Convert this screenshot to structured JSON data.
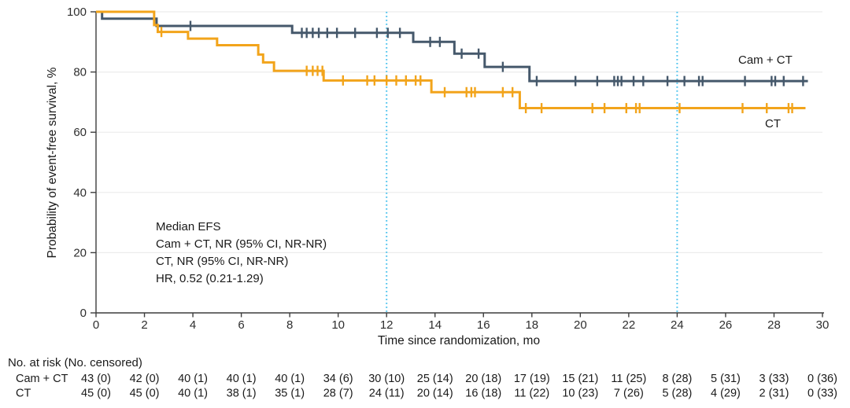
{
  "chart_data": {
    "type": "line",
    "subtype": "kaplan_meier_step_curve",
    "title": "",
    "xlabel": "Time since randomization, mo",
    "ylabel": "Probability of event-free survival, %",
    "xlim": [
      0,
      30
    ],
    "ylim": [
      0,
      100
    ],
    "xticks": [
      0,
      2,
      4,
      6,
      8,
      10,
      12,
      14,
      16,
      18,
      20,
      22,
      24,
      26,
      28,
      30
    ],
    "yticks": [
      0,
      20,
      40,
      60,
      80,
      100
    ],
    "grid": "horizontal-light",
    "legend_position": "labels-at-curve-end",
    "reference_lines_x": [
      12,
      24
    ],
    "colors": {
      "grid": "#ECECEC",
      "axis": "#3D3D3D",
      "reference": "#4EC3EE",
      "cam_ct": "#45586B",
      "ct": "#F2A41B"
    },
    "annotation": [
      "Median EFS",
      "Cam + CT, NR (95% CI, NR-NR)",
      "CT, NR (95% CI, NR-NR)",
      "HR, 0.52 (0.21-1.29)"
    ],
    "series": [
      {
        "id": "cam-ct",
        "name": "Cam + CT",
        "color": "#45586B",
        "steps": [
          [
            0,
            100
          ],
          [
            0.25,
            97.7
          ],
          [
            2.5,
            95.3
          ],
          [
            8.1,
            93.0
          ],
          [
            13.1,
            90.0
          ],
          [
            14.8,
            86.1
          ],
          [
            16.05,
            81.7
          ],
          [
            17.9,
            77.0
          ]
        ],
        "end_time": 29.4,
        "censor_marks": [
          [
            3.9,
            95.3
          ],
          [
            8.5,
            93.0
          ],
          [
            8.7,
            93.0
          ],
          [
            8.95,
            93.0
          ],
          [
            9.2,
            93.0
          ],
          [
            9.55,
            93.0
          ],
          [
            9.95,
            93.0
          ],
          [
            10.7,
            93.0
          ],
          [
            11.6,
            93.0
          ],
          [
            12.05,
            93.0
          ],
          [
            12.55,
            93.0
          ],
          [
            13.8,
            90.0
          ],
          [
            14.2,
            90.0
          ],
          [
            15.1,
            86.1
          ],
          [
            15.8,
            86.1
          ],
          [
            16.8,
            81.7
          ],
          [
            18.2,
            77.0
          ],
          [
            19.8,
            77.0
          ],
          [
            20.7,
            77.0
          ],
          [
            21.4,
            77.0
          ],
          [
            21.55,
            77.0
          ],
          [
            21.7,
            77.0
          ],
          [
            22.2,
            77.0
          ],
          [
            22.6,
            77.0
          ],
          [
            23.6,
            77.0
          ],
          [
            24.3,
            77.0
          ],
          [
            24.9,
            77.0
          ],
          [
            25.05,
            77.0
          ],
          [
            26.8,
            77.0
          ],
          [
            27.9,
            77.0
          ],
          [
            28.05,
            77.0
          ],
          [
            28.4,
            77.0
          ],
          [
            29.2,
            77.0
          ]
        ],
        "label_anchor": {
          "t": 26.55,
          "pct": 82.8
        }
      },
      {
        "id": "ct",
        "name": "CT",
        "color": "#F2A41B",
        "steps": [
          [
            0,
            100
          ],
          [
            2.4,
            95.6
          ],
          [
            2.55,
            93.3
          ],
          [
            3.8,
            91.1
          ],
          [
            5.0,
            88.9
          ],
          [
            6.7,
            85.8
          ],
          [
            6.9,
            83.2
          ],
          [
            7.35,
            80.4
          ],
          [
            9.4,
            77.2
          ],
          [
            13.85,
            73.3
          ],
          [
            17.5,
            68.0
          ]
        ],
        "end_time": 29.3,
        "censor_marks": [
          [
            2.7,
            93.3
          ],
          [
            8.7,
            80.4
          ],
          [
            8.95,
            80.4
          ],
          [
            9.15,
            80.4
          ],
          [
            9.35,
            80.4
          ],
          [
            10.2,
            77.2
          ],
          [
            11.2,
            77.2
          ],
          [
            11.5,
            77.2
          ],
          [
            12.0,
            77.2
          ],
          [
            12.4,
            77.2
          ],
          [
            12.8,
            77.2
          ],
          [
            13.2,
            77.2
          ],
          [
            13.4,
            77.2
          ],
          [
            14.4,
            73.3
          ],
          [
            15.3,
            73.3
          ],
          [
            15.5,
            73.3
          ],
          [
            15.65,
            73.3
          ],
          [
            16.8,
            73.3
          ],
          [
            17.2,
            73.3
          ],
          [
            17.75,
            68.0
          ],
          [
            18.4,
            68.0
          ],
          [
            20.5,
            68.0
          ],
          [
            21.0,
            68.0
          ],
          [
            21.9,
            68.0
          ],
          [
            22.3,
            68.0
          ],
          [
            22.45,
            68.0
          ],
          [
            24.1,
            68.0
          ],
          [
            26.7,
            68.0
          ],
          [
            27.7,
            68.0
          ],
          [
            28.6,
            68.0
          ],
          [
            28.75,
            68.0
          ]
        ],
        "label_anchor": {
          "t": 27.65,
          "pct": 61.6
        }
      }
    ]
  },
  "risk_table": {
    "title": "No. at risk (No. censored)",
    "times": [
      0,
      2,
      4,
      6,
      8,
      10,
      12,
      14,
      16,
      18,
      20,
      22,
      24,
      26,
      28,
      30
    ],
    "rows": [
      {
        "label": "Cam + CT",
        "values": [
          "43 (0)",
          "42 (0)",
          "40 (1)",
          "40 (1)",
          "40 (1)",
          "34 (6)",
          "30 (10)",
          "25 (14)",
          "20 (18)",
          "17 (19)",
          "15 (21)",
          "11 (25)",
          "8 (28)",
          "5 (31)",
          "3 (33)",
          "0 (36)"
        ]
      },
      {
        "label": "CT",
        "values": [
          "45 (0)",
          "45 (0)",
          "40 (1)",
          "38 (1)",
          "35 (1)",
          "28 (7)",
          "24 (11)",
          "20 (14)",
          "16 (18)",
          "11 (22)",
          "10 (23)",
          "7 (26)",
          "5 (28)",
          "4 (29)",
          "2 (31)",
          "0 (33)"
        ]
      }
    ]
  }
}
